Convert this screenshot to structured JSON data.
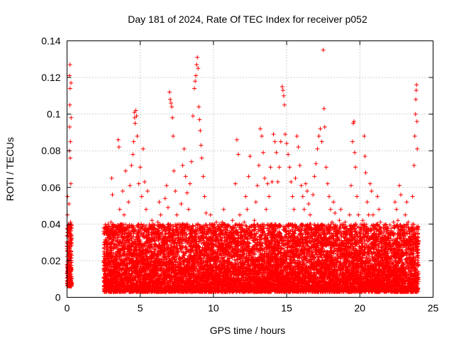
{
  "chart_data": {
    "type": "scatter",
    "title": "Day 181 of 2024, Rate Of TEC Index for receiver p052",
    "xlabel": "GPS time / hours",
    "ylabel": "ROTI / TECUs",
    "xlim": [
      0,
      25
    ],
    "ylim": [
      0,
      0.14
    ],
    "xticks": [
      0,
      5,
      10,
      15,
      20,
      25
    ],
    "xtick_labels": [
      "0",
      "5",
      "10",
      "15",
      "20",
      "25"
    ],
    "yticks": [
      0,
      0.02,
      0.04,
      0.06,
      0.08,
      0.1,
      0.12,
      0.14
    ],
    "ytick_labels": [
      "0",
      "0.02",
      "0.04",
      "0.06",
      "0.08",
      "0.1",
      "0.12",
      "0.14"
    ],
    "grid": true,
    "marker": "+",
    "color": "#ff0000",
    "series": [
      {
        "name": "ROTI",
        "points": [
          [
            0.0,
            0.013
          ],
          [
            0.02,
            0.045
          ],
          [
            0.03,
            0.055
          ],
          [
            0.05,
            0.028
          ],
          [
            0.06,
            0.009
          ],
          [
            0.08,
            0.033
          ],
          [
            0.1,
            0.018
          ],
          [
            0.12,
            0.024
          ],
          [
            0.13,
            0.051
          ],
          [
            0.15,
            0.012
          ],
          [
            0.16,
            0.08
          ],
          [
            0.17,
            0.121
          ],
          [
            0.18,
            0.093
          ],
          [
            0.19,
            0.105
          ],
          [
            0.2,
            0.127
          ],
          [
            0.21,
            0.114
          ],
          [
            0.22,
            0.076
          ],
          [
            0.23,
            0.085
          ],
          [
            0.24,
            0.041
          ],
          [
            0.25,
            0.031
          ],
          [
            0.26,
            0.062
          ],
          [
            0.27,
            0.117
          ],
          [
            0.28,
            0.098
          ],
          [
            0.29,
            0.02
          ],
          [
            0.3,
            0.007
          ],
          [
            0.31,
            0.015
          ],
          [
            2.6,
            0.012
          ],
          [
            2.7,
            0.025
          ],
          [
            2.8,
            0.018
          ],
          [
            2.9,
            0.035
          ],
          [
            3.0,
            0.041
          ],
          [
            3.05,
            0.065
          ],
          [
            3.1,
            0.056
          ],
          [
            3.2,
            0.032
          ],
          [
            3.3,
            0.022
          ],
          [
            3.4,
            0.028
          ],
          [
            3.5,
            0.086
          ],
          [
            3.55,
            0.082
          ],
          [
            3.6,
            0.048
          ],
          [
            3.7,
            0.036
          ],
          [
            3.8,
            0.058
          ],
          [
            3.9,
            0.045
          ],
          [
            4.0,
            0.069
          ],
          [
            4.1,
            0.038
          ],
          [
            4.2,
            0.052
          ],
          [
            4.3,
            0.061
          ],
          [
            4.4,
            0.072
          ],
          [
            4.5,
            0.078
          ],
          [
            4.55,
            0.085
          ],
          [
            4.6,
            0.101
          ],
          [
            4.62,
            0.098
          ],
          [
            4.65,
            0.095
          ],
          [
            4.7,
            0.102
          ],
          [
            4.75,
            0.099
          ],
          [
            4.8,
            0.088
          ],
          [
            4.9,
            0.062
          ],
          [
            5.0,
            0.071
          ],
          [
            5.1,
            0.055
          ],
          [
            5.2,
            0.081
          ],
          [
            5.3,
            0.063
          ],
          [
            5.4,
            0.048
          ],
          [
            5.5,
            0.058
          ],
          [
            5.6,
            0.038
          ],
          [
            5.7,
            0.029
          ],
          [
            5.8,
            0.042
          ],
          [
            5.9,
            0.032
          ],
          [
            6.0,
            0.025
          ],
          [
            6.1,
            0.035
          ],
          [
            6.2,
            0.041
          ],
          [
            6.3,
            0.052
          ],
          [
            6.4,
            0.045
          ],
          [
            6.5,
            0.039
          ],
          [
            6.6,
            0.031
          ],
          [
            6.7,
            0.054
          ],
          [
            6.8,
            0.061
          ],
          [
            6.9,
            0.049
          ],
          [
            7.0,
            0.112
          ],
          [
            7.05,
            0.108
          ],
          [
            7.1,
            0.106
          ],
          [
            7.15,
            0.104
          ],
          [
            7.2,
            0.098
          ],
          [
            7.25,
            0.088
          ],
          [
            7.3,
            0.069
          ],
          [
            7.4,
            0.058
          ],
          [
            7.5,
            0.045
          ],
          [
            7.6,
            0.032
          ],
          [
            7.7,
            0.038
          ],
          [
            7.8,
            0.051
          ],
          [
            7.9,
            0.072
          ],
          [
            8.0,
            0.081
          ],
          [
            8.1,
            0.066
          ],
          [
            8.2,
            0.057
          ],
          [
            8.3,
            0.048
          ],
          [
            8.4,
            0.062
          ],
          [
            8.5,
            0.074
          ],
          [
            8.6,
            0.099
          ],
          [
            8.7,
            0.114
          ],
          [
            8.75,
            0.118
          ],
          [
            8.8,
            0.121
          ],
          [
            8.85,
            0.127
          ],
          [
            8.9,
            0.131
          ],
          [
            8.95,
            0.125
          ],
          [
            9.0,
            0.104
          ],
          [
            9.05,
            0.097
          ],
          [
            9.1,
            0.091
          ],
          [
            9.15,
            0.083
          ],
          [
            9.2,
            0.076
          ],
          [
            9.3,
            0.066
          ],
          [
            9.4,
            0.055
          ],
          [
            9.5,
            0.046
          ],
          [
            9.6,
            0.038
          ],
          [
            9.7,
            0.032
          ],
          [
            9.8,
            0.045
          ],
          [
            9.9,
            0.039
          ],
          [
            10.0,
            0.028
          ],
          [
            10.1,
            0.035
          ],
          [
            10.2,
            0.041
          ],
          [
            10.3,
            0.032
          ],
          [
            10.4,
            0.038
          ],
          [
            10.5,
            0.034
          ],
          [
            10.6,
            0.041
          ],
          [
            10.7,
            0.048
          ],
          [
            10.8,
            0.038
          ],
          [
            10.9,
            0.031
          ],
          [
            11.0,
            0.025
          ],
          [
            11.1,
            0.032
          ],
          [
            11.2,
            0.035
          ],
          [
            11.3,
            0.042
          ],
          [
            11.4,
            0.038
          ],
          [
            11.5,
            0.062
          ],
          [
            11.6,
            0.086
          ],
          [
            11.7,
            0.078
          ],
          [
            11.8,
            0.045
          ],
          [
            11.9,
            0.038
          ],
          [
            12.0,
            0.032
          ],
          [
            12.1,
            0.041
          ],
          [
            12.2,
            0.055
          ],
          [
            12.3,
            0.048
          ],
          [
            12.4,
            0.066
          ],
          [
            12.5,
            0.077
          ],
          [
            12.6,
            0.039
          ],
          [
            12.7,
            0.031
          ],
          [
            12.8,
            0.042
          ],
          [
            12.9,
            0.052
          ],
          [
            13.0,
            0.061
          ],
          [
            13.1,
            0.072
          ],
          [
            13.2,
            0.092
          ],
          [
            13.3,
            0.088
          ],
          [
            13.4,
            0.079
          ],
          [
            13.5,
            0.065
          ],
          [
            13.6,
            0.048
          ],
          [
            13.7,
            0.062
          ],
          [
            13.8,
            0.055
          ],
          [
            13.9,
            0.071
          ],
          [
            14.0,
            0.063
          ],
          [
            14.1,
            0.089
          ],
          [
            14.2,
            0.085
          ],
          [
            14.3,
            0.079
          ],
          [
            14.4,
            0.063
          ],
          [
            14.5,
            0.071
          ],
          [
            14.6,
            0.085
          ],
          [
            14.7,
            0.115
          ],
          [
            14.75,
            0.113
          ],
          [
            14.8,
            0.11
          ],
          [
            14.85,
            0.105
          ],
          [
            14.9,
            0.089
          ],
          [
            15.0,
            0.084
          ],
          [
            15.1,
            0.078
          ],
          [
            15.2,
            0.071
          ],
          [
            15.3,
            0.063
          ],
          [
            15.4,
            0.055
          ],
          [
            15.5,
            0.048
          ],
          [
            15.6,
            0.065
          ],
          [
            15.7,
            0.088
          ],
          [
            15.8,
            0.082
          ],
          [
            15.9,
            0.072
          ],
          [
            16.0,
            0.061
          ],
          [
            16.1,
            0.055
          ],
          [
            16.2,
            0.048
          ],
          [
            16.3,
            0.062
          ],
          [
            16.4,
            0.058
          ],
          [
            16.5,
            0.051
          ],
          [
            16.6,
            0.045
          ],
          [
            16.7,
            0.038
          ],
          [
            16.8,
            0.056
          ],
          [
            16.9,
            0.066
          ],
          [
            17.0,
            0.073
          ],
          [
            17.1,
            0.081
          ],
          [
            17.2,
            0.088
          ],
          [
            17.3,
            0.092
          ],
          [
            17.4,
            0.085
          ],
          [
            17.5,
            0.135
          ],
          [
            17.55,
            0.103
          ],
          [
            17.6,
            0.093
          ],
          [
            17.7,
            0.071
          ],
          [
            17.8,
            0.062
          ],
          [
            17.9,
            0.055
          ],
          [
            18.0,
            0.048
          ],
          [
            18.1,
            0.041
          ],
          [
            18.2,
            0.052
          ],
          [
            18.3,
            0.046
          ],
          [
            18.4,
            0.038
          ],
          [
            18.5,
            0.032
          ],
          [
            18.6,
            0.042
          ],
          [
            18.7,
            0.048
          ],
          [
            18.8,
            0.039
          ],
          [
            18.9,
            0.033
          ],
          [
            19.0,
            0.041
          ],
          [
            19.1,
            0.036
          ],
          [
            19.2,
            0.031
          ],
          [
            19.3,
            0.045
          ],
          [
            19.4,
            0.061
          ],
          [
            19.5,
            0.085
          ],
          [
            19.55,
            0.095
          ],
          [
            19.6,
            0.096
          ],
          [
            19.65,
            0.079
          ],
          [
            19.7,
            0.071
          ],
          [
            19.8,
            0.055
          ],
          [
            19.9,
            0.045
          ],
          [
            20.0,
            0.038
          ],
          [
            20.1,
            0.032
          ],
          [
            20.2,
            0.042
          ],
          [
            20.3,
            0.088
          ],
          [
            20.35,
            0.077
          ],
          [
            20.4,
            0.068
          ],
          [
            20.5,
            0.052
          ],
          [
            20.6,
            0.045
          ],
          [
            20.7,
            0.062
          ],
          [
            20.8,
            0.058
          ],
          [
            20.9,
            0.045
          ],
          [
            21.0,
            0.038
          ],
          [
            21.1,
            0.032
          ],
          [
            21.2,
            0.055
          ],
          [
            21.3,
            0.048
          ],
          [
            21.4,
            0.041
          ],
          [
            21.5,
            0.035
          ],
          [
            21.6,
            0.028
          ],
          [
            21.7,
            0.022
          ],
          [
            21.8,
            0.018
          ],
          [
            21.9,
            0.025
          ],
          [
            22.0,
            0.032
          ],
          [
            22.1,
            0.028
          ],
          [
            22.2,
            0.035
          ],
          [
            22.3,
            0.041
          ],
          [
            22.4,
            0.052
          ],
          [
            22.5,
            0.048
          ],
          [
            22.6,
            0.042
          ],
          [
            22.7,
            0.061
          ],
          [
            22.8,
            0.056
          ],
          [
            22.9,
            0.038
          ],
          [
            23.0,
            0.031
          ],
          [
            23.1,
            0.045
          ],
          [
            23.2,
            0.052
          ],
          [
            23.3,
            0.041
          ],
          [
            23.4,
            0.035
          ],
          [
            23.5,
            0.032
          ],
          [
            23.6,
            0.055
          ],
          [
            23.7,
            0.072
          ],
          [
            23.75,
            0.088
          ],
          [
            23.8,
            0.1
          ],
          [
            23.82,
            0.108
          ],
          [
            23.85,
            0.113
          ],
          [
            23.87,
            0.116
          ],
          [
            23.9,
            0.096
          ],
          [
            23.92,
            0.081
          ],
          [
            23.95,
            0.024
          ]
        ]
      }
    ],
    "dense_band": {
      "description": "dense measurement band",
      "segments": [
        {
          "x_range": [
            0.0,
            0.32
          ],
          "y_range": [
            0.006,
            0.04
          ]
        },
        {
          "x_range": [
            2.5,
            24.0
          ],
          "y_range": [
            0.003,
            0.04
          ]
        }
      ]
    }
  }
}
